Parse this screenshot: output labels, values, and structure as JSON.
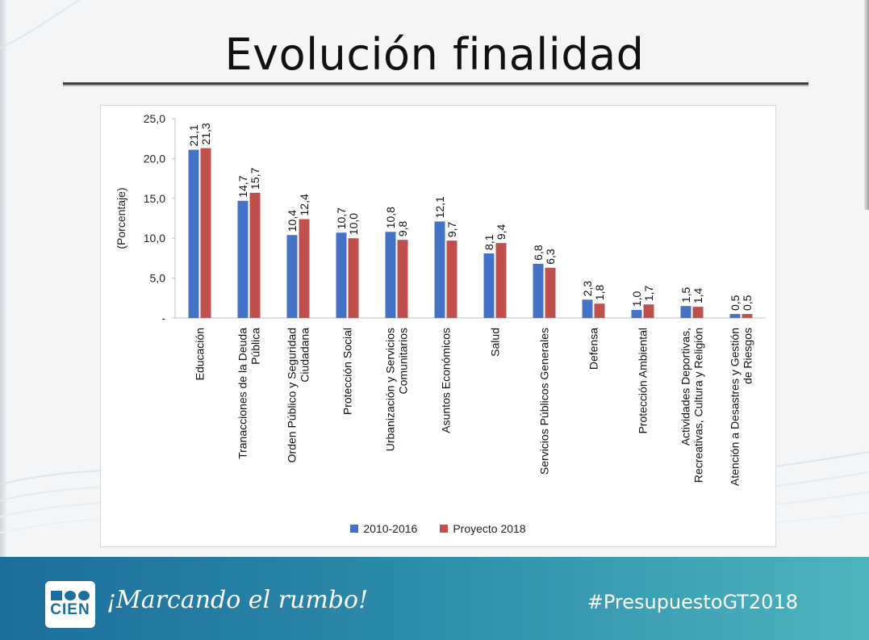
{
  "slide": {
    "title": "Evolución finalidad",
    "footer_logo_text": "CIEN",
    "footer_slogan": "¡Marcando el rumbo!",
    "footer_hashtag": "#PresupuestoGT2018"
  },
  "colors": {
    "series_2010_2016": "#4472c4",
    "series_proyecto_2018": "#c0504d",
    "footer_start": "#1c6e9c",
    "footer_end": "#4db4bd"
  },
  "chart_data": {
    "type": "bar",
    "title": "",
    "xlabel": "",
    "ylabel": "(Porcentaje)",
    "ylim": [
      0,
      25
    ],
    "yticks": [
      "-",
      "5,0",
      "10,0",
      "15,0",
      "20,0",
      "25,0"
    ],
    "grid": false,
    "legend": "bottom",
    "categories": [
      [
        "Educación"
      ],
      [
        "Tranacciones de la Deuda",
        "Pública"
      ],
      [
        "Orden Público y Seguridad",
        "Ciudadana"
      ],
      [
        "Protección Social"
      ],
      [
        "Urbanización y Servicios",
        "Comunitarios"
      ],
      [
        "Asuntos Económicos"
      ],
      [
        "Salud"
      ],
      [
        "Servicios Públicos Generales"
      ],
      [
        "Defensa"
      ],
      [
        "Protección Ambiental"
      ],
      [
        "Actividades Deportivas,",
        "Recreativas, Cultura y Religión"
      ],
      [
        "Atención a Desastres y Gestión",
        "de Riesgos"
      ]
    ],
    "series": [
      {
        "name": "2010-2016",
        "values": [
          21.1,
          14.7,
          10.4,
          10.7,
          10.8,
          12.1,
          8.1,
          6.8,
          2.3,
          1.0,
          1.5,
          0.5
        ],
        "labels": [
          "21,1",
          "14,7",
          "10,4",
          "10,7",
          "10,8",
          "12,1",
          "8,1",
          "6,8",
          "2,3",
          "1,0",
          "1,5",
          "0,5"
        ]
      },
      {
        "name": "Proyecto 2018",
        "values": [
          21.3,
          15.7,
          12.4,
          10.0,
          9.8,
          9.7,
          9.4,
          6.3,
          1.8,
          1.7,
          1.4,
          0.5
        ],
        "labels": [
          "21,3",
          "15,7",
          "12,4",
          "10,0",
          "9,8",
          "9,7",
          "9,4",
          "6,3",
          "1,8",
          "1,7",
          "1,4",
          "0,5"
        ]
      }
    ]
  }
}
